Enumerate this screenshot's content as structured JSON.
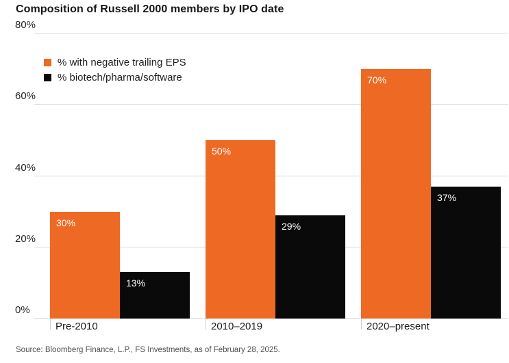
{
  "title": "Composition of Russell 2000 members by IPO date",
  "source": "Source: Bloomberg Finance, L.P., FS Investments, as of February 28, 2025.",
  "colors": {
    "negative_eps_orange": "#EE6A24",
    "biotech_black": "#0A0A0A",
    "gridline": "#D8D8D8",
    "value_label": "#FFFFFF"
  },
  "chart_data": {
    "type": "bar",
    "categories": [
      "Pre-2010",
      "2010–2019",
      "2020–present"
    ],
    "series": [
      {
        "name": "% with negative trailing EPS",
        "color": "#EE6A24",
        "values": [
          30,
          50,
          70
        ]
      },
      {
        "name": "% biotech/pharma/software",
        "color": "#0A0A0A",
        "values": [
          13,
          29,
          37
        ]
      }
    ],
    "value_labels": [
      [
        "30%",
        "50%",
        "70%"
      ],
      [
        "13%",
        "29%",
        "37%"
      ]
    ],
    "xlabel": "",
    "ylabel": "",
    "ylim": [
      0,
      80
    ],
    "yticks": [
      0,
      20,
      40,
      60,
      80
    ],
    "ytick_labels": [
      "0%",
      "20%",
      "40%",
      "60%",
      "80%"
    ],
    "grid": true,
    "legend_position": "top-left-inside",
    "value_labels_inside_bars": true
  }
}
